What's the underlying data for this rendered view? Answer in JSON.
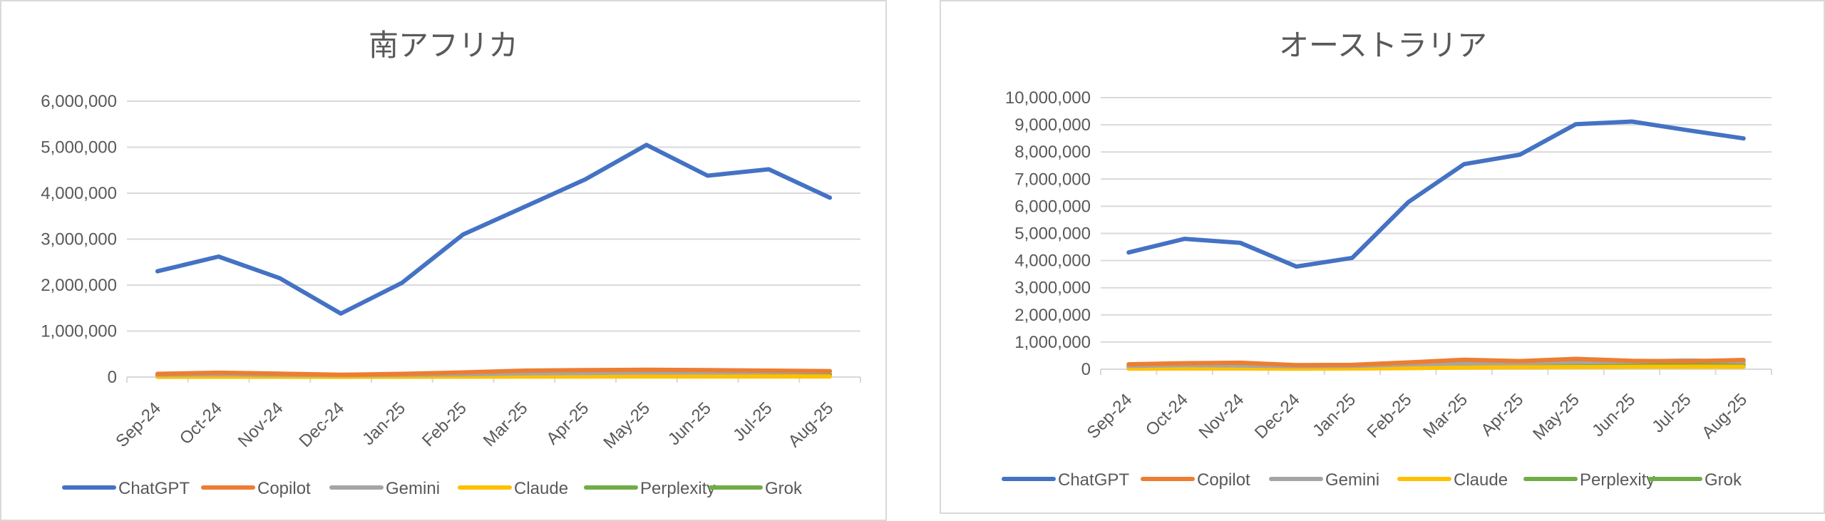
{
  "chart_data": [
    {
      "type": "line",
      "title": "南アフリカ",
      "categories": [
        "Sep-24",
        "Oct-24",
        "Nov-24",
        "Dec-24",
        "Jan-25",
        "Feb-25",
        "Mar-25",
        "Apr-25",
        "May-25",
        "Jun-25",
        "Jul-25",
        "Aug-25"
      ],
      "ylim": [
        0,
        6000000
      ],
      "yticks": [
        0,
        1000000,
        2000000,
        3000000,
        4000000,
        5000000,
        6000000
      ],
      "ytick_labels": [
        "0",
        "1,000,000",
        "2,000,000",
        "3,000,000",
        "4,000,000",
        "5,000,000",
        "6,000,000"
      ],
      "grid": true,
      "legend_position": "bottom",
      "series": [
        {
          "name": "ChatGPT",
          "color": "#4472C4",
          "values": [
            2300000,
            2620000,
            2150000,
            1380000,
            2050000,
            3100000,
            3700000,
            4300000,
            5050000,
            4380000,
            4520000,
            3900000
          ]
        },
        {
          "name": "Copilot",
          "color": "#ED7D31",
          "values": [
            70000,
            95000,
            75000,
            50000,
            70000,
            100000,
            140000,
            150000,
            160000,
            150000,
            140000,
            130000
          ]
        },
        {
          "name": "Gemini",
          "color": "#A5A5A5",
          "values": [
            50000,
            60000,
            50000,
            40000,
            50000,
            60000,
            80000,
            90000,
            100000,
            100000,
            110000,
            120000
          ]
        },
        {
          "name": "Claude",
          "color": "#FFC000",
          "values": [
            5000,
            6000,
            6000,
            5000,
            6000,
            8000,
            10000,
            10000,
            12000,
            12000,
            12000,
            12000
          ]
        },
        {
          "name": "Perplexity",
          "color": "#70AD47",
          "values": [
            40000,
            50000,
            45000,
            35000,
            40000,
            45000,
            55000,
            60000,
            60000,
            55000,
            55000,
            55000
          ]
        },
        {
          "name": "Grok",
          "color": "#70AD47",
          "values": [
            20000,
            25000,
            22000,
            18000,
            22000,
            30000,
            35000,
            40000,
            45000,
            42000,
            42000,
            40000
          ]
        }
      ]
    },
    {
      "type": "line",
      "title": "オーストラリア",
      "categories": [
        "Sep-24",
        "Oct-24",
        "Nov-24",
        "Dec-24",
        "Jan-25",
        "Feb-25",
        "Mar-25",
        "Apr-25",
        "May-25",
        "Jun-25",
        "Jul-25",
        "Aug-25"
      ],
      "ylim": [
        0,
        10000000
      ],
      "yticks": [
        0,
        1000000,
        2000000,
        3000000,
        4000000,
        5000000,
        6000000,
        7000000,
        8000000,
        9000000,
        10000000
      ],
      "ytick_labels": [
        "0",
        "1,000,000",
        "2,000,000",
        "3,000,000",
        "4,000,000",
        "5,000,000",
        "6,000,000",
        "7,000,000",
        "8,000,000",
        "9,000,000",
        "10,000,000"
      ],
      "grid": true,
      "legend_position": "bottom",
      "series": [
        {
          "name": "ChatGPT",
          "color": "#4472C4",
          "values": [
            4300000,
            4800000,
            4650000,
            3780000,
            4100000,
            6150000,
            7550000,
            7900000,
            9020000,
            9120000,
            8800000,
            8500000
          ]
        },
        {
          "name": "Copilot",
          "color": "#ED7D31",
          "values": [
            180000,
            220000,
            240000,
            150000,
            160000,
            250000,
            350000,
            300000,
            380000,
            310000,
            290000,
            340000
          ]
        },
        {
          "name": "Gemini",
          "color": "#A5A5A5",
          "values": [
            120000,
            150000,
            140000,
            110000,
            120000,
            180000,
            220000,
            230000,
            260000,
            280000,
            320000,
            280000
          ]
        },
        {
          "name": "Claude",
          "color": "#FFC000",
          "values": [
            20000,
            25000,
            25000,
            20000,
            25000,
            40000,
            60000,
            70000,
            80000,
            85000,
            90000,
            90000
          ]
        },
        {
          "name": "Perplexity",
          "color": "#70AD47",
          "values": [
            100000,
            120000,
            110000,
            90000,
            100000,
            130000,
            150000,
            160000,
            170000,
            170000,
            165000,
            160000
          ]
        },
        {
          "name": "Grok",
          "color": "#70AD47",
          "values": [
            60000,
            70000,
            65000,
            55000,
            60000,
            80000,
            95000,
            100000,
            110000,
            110000,
            105000,
            100000
          ]
        }
      ]
    }
  ]
}
